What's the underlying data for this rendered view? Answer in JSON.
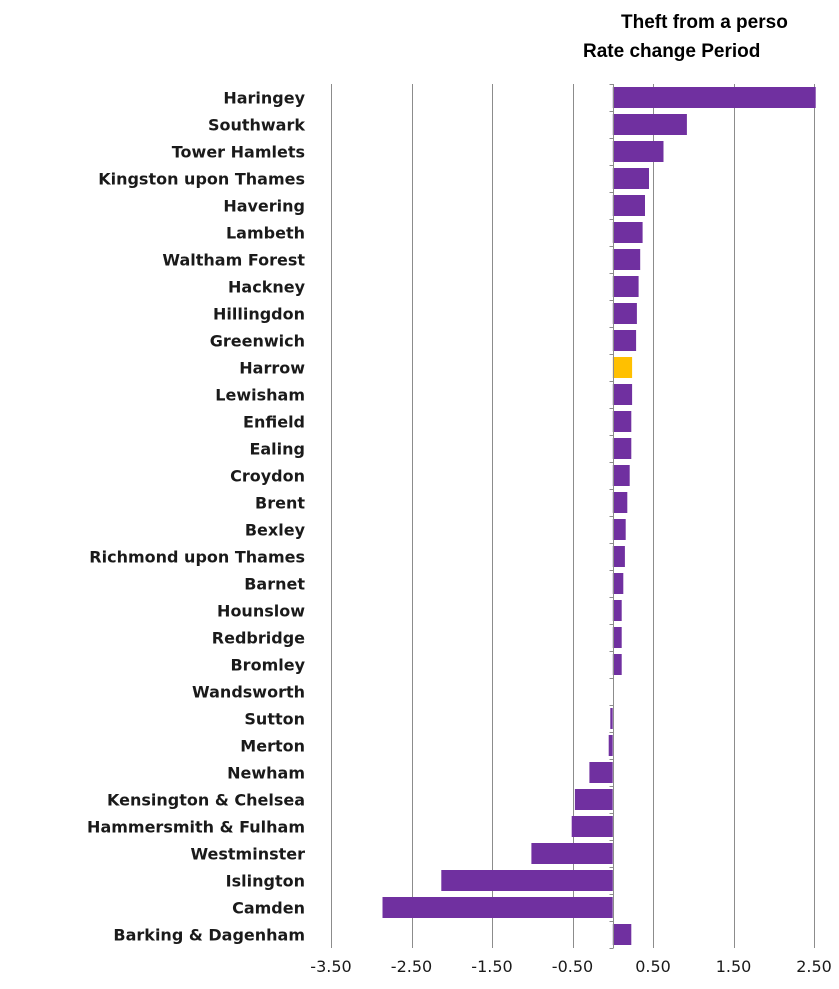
{
  "chart_data": {
    "type": "bar",
    "orientation": "horizontal",
    "title_lines": [
      "Theft from a perso",
      "Rate change Period"
    ],
    "xlabel": "",
    "ylabel": "",
    "xlim": [
      -3.5,
      2.5
    ],
    "x_ticks": [
      "-3.50",
      "-2.50",
      "-1.50",
      "-0.50",
      "0.50",
      "1.50",
      "2.50"
    ],
    "grid": "vertical",
    "legend": "none",
    "default_color": "#7030A0",
    "highlight_color": "#FFC000",
    "highlight_category": "Harrow",
    "categories": [
      "Haringey",
      "Southwark",
      "Tower Hamlets",
      "Kingston upon Thames",
      "Havering",
      "Lambeth",
      "Waltham Forest",
      "Hackney",
      "Hillingdon",
      "Greenwich",
      "Harrow",
      "Lewisham",
      "Enfield",
      "Ealing",
      "Croydon",
      "Brent",
      "Bexley",
      "Richmond upon Thames",
      "Barnet",
      "Hounslow",
      "Redbridge",
      "Bromley",
      "Wandsworth",
      "Sutton",
      "Merton",
      "Newham",
      "Kensington & Chelsea",
      "Hammersmith & Fulham",
      "Westminster",
      "Islington",
      "Camden",
      "Barking & Dagenham"
    ],
    "values": [
      2.52,
      0.92,
      0.63,
      0.45,
      0.4,
      0.37,
      0.34,
      0.32,
      0.3,
      0.29,
      0.24,
      0.24,
      0.23,
      0.23,
      0.21,
      0.18,
      0.16,
      0.15,
      0.13,
      0.11,
      0.11,
      0.11,
      0.0,
      -0.03,
      -0.05,
      -0.29,
      -0.47,
      -0.51,
      -1.01,
      -2.13,
      -2.86,
      0.23
    ]
  }
}
